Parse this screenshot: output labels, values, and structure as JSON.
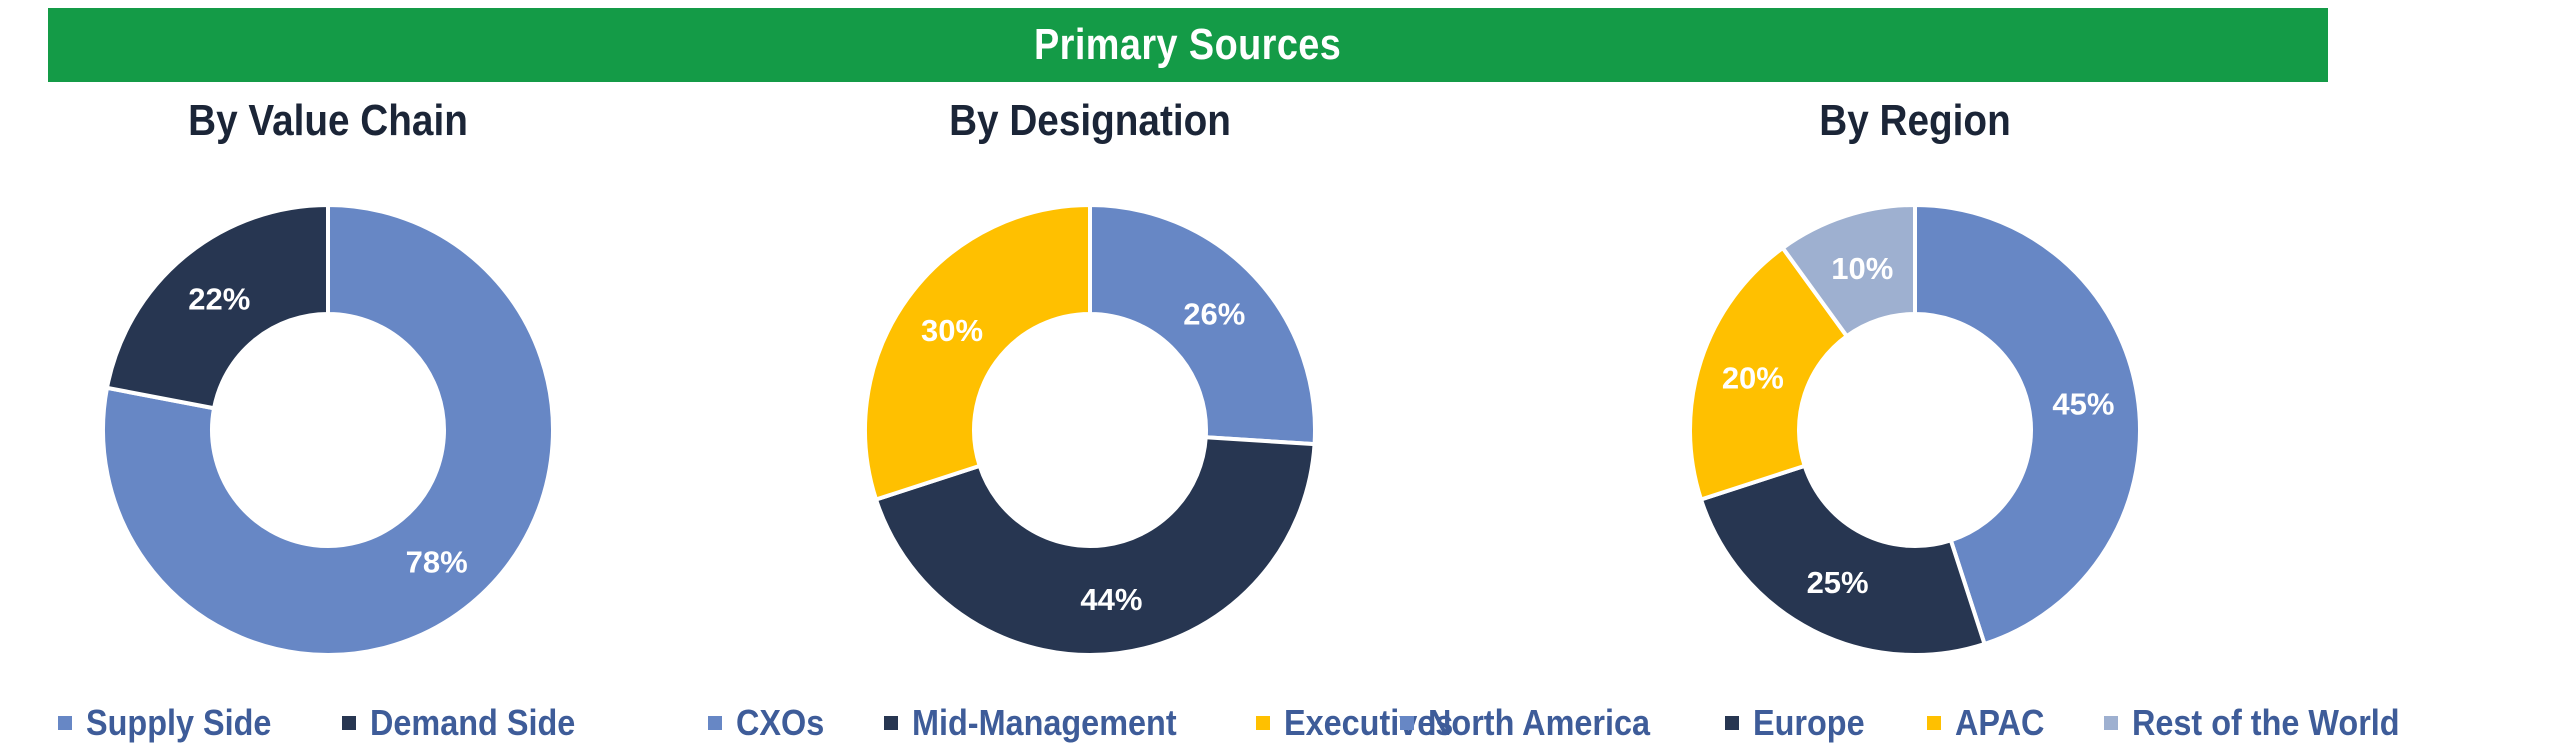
{
  "banner": {
    "title": "Primary Sources"
  },
  "chart_data": [
    {
      "type": "pie",
      "title": "By Value Chain",
      "categories": [
        "Supply Side",
        "Demand Side"
      ],
      "values": [
        78,
        22
      ],
      "labels": [
        "78%",
        "22%"
      ],
      "colors": [
        "#6787c5",
        "#273651"
      ],
      "legend_position": "bottom"
    },
    {
      "type": "pie",
      "title": "By Designation",
      "categories": [
        "CXOs",
        "Mid-Management",
        "Executives"
      ],
      "values": [
        26,
        44,
        30
      ],
      "labels": [
        "26%",
        "44%",
        "30%"
      ],
      "colors": [
        "#6787c5",
        "#273651",
        "#ffc000"
      ],
      "legend_position": "bottom"
    },
    {
      "type": "pie",
      "title": "By Region",
      "categories": [
        "North America",
        "Europe",
        "APAC",
        "Rest of the World"
      ],
      "values": [
        45,
        25,
        20,
        10
      ],
      "labels": [
        "45%",
        "25%",
        "20%",
        "10%"
      ],
      "colors": [
        "#6787c5",
        "#273651",
        "#ffc000",
        "#9eb0d0"
      ],
      "legend_position": "bottom"
    }
  ]
}
